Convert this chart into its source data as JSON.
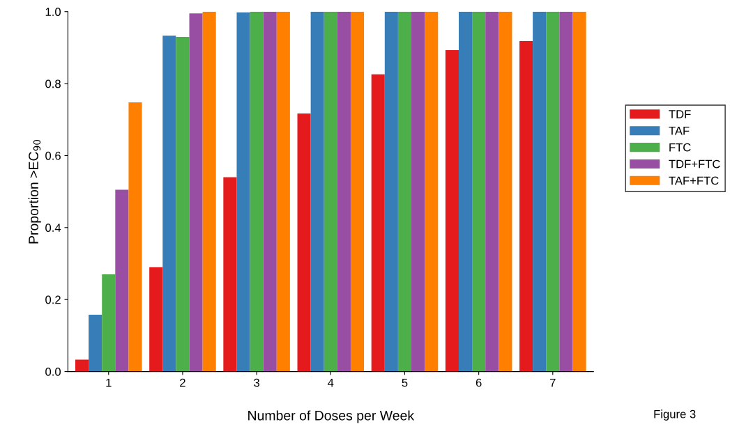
{
  "chart_data": {
    "type": "bar",
    "xlabel": "Number of Doses per Week",
    "ylabel": "Proportion >EC$_{90}$",
    "categories": [
      "1",
      "2",
      "3",
      "4",
      "5",
      "6",
      "7"
    ],
    "series": [
      {
        "name": "TDF",
        "color": "#e41a1c",
        "values": [
          0.033,
          0.29,
          0.54,
          0.717,
          0.826,
          0.893,
          0.918
        ]
      },
      {
        "name": "TAF",
        "color": "#377eb8",
        "values": [
          0.158,
          0.933,
          0.998,
          1.0,
          1.0,
          1.0,
          1.0
        ]
      },
      {
        "name": "FTC",
        "color": "#4daf4a",
        "values": [
          0.27,
          0.93,
          1.0,
          1.0,
          1.0,
          1.0,
          1.0
        ]
      },
      {
        "name": "TDF+FTC",
        "color": "#984ea3",
        "values": [
          0.505,
          0.995,
          1.0,
          1.0,
          1.0,
          1.0,
          1.0
        ]
      },
      {
        "name": "TAF+FTC",
        "color": "#ff7f00",
        "values": [
          0.748,
          1.0,
          1.0,
          1.0,
          1.0,
          1.0,
          1.0
        ]
      }
    ],
    "ylim": [
      0,
      1.0
    ],
    "yticks": [
      {
        "value": 0,
        "label": "0.0"
      },
      {
        "value": 0.2,
        "label": "0.2"
      },
      {
        "value": 0.4,
        "label": "0.4"
      },
      {
        "value": 0.6,
        "label": "0.6"
      },
      {
        "value": 0.8,
        "label": "0.8"
      },
      {
        "value": 1.0,
        "label": "1.0"
      }
    ],
    "grid": false,
    "legend": "right",
    "annotations": [
      "Figure 3"
    ]
  }
}
